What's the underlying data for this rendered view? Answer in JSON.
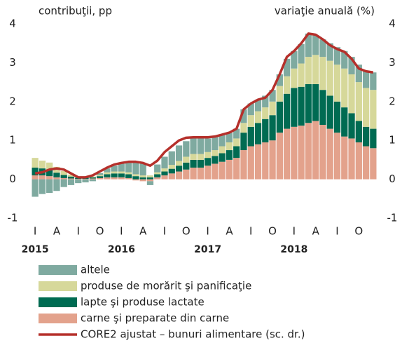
{
  "chart_data": {
    "type": "bar",
    "y_label": "contribuţii, pp",
    "y2_label": "variaţie anuală (%)",
    "categories": [
      "I",
      null,
      null,
      "A",
      null,
      null,
      "I",
      null,
      null,
      "O",
      null,
      null,
      "I",
      null,
      null,
      "A",
      null,
      null,
      "I",
      null,
      null,
      "O",
      null,
      null,
      "I",
      null,
      null,
      "A",
      null,
      null,
      "I",
      null,
      null,
      "O",
      null,
      null,
      "I",
      null,
      null,
      "A",
      null,
      null,
      "I",
      null,
      null,
      "O",
      null,
      null
    ],
    "year_labels": [
      "2015",
      "2016",
      "2017",
      "2018"
    ],
    "ylim": [
      -1,
      4
    ],
    "yticks": [
      -1,
      0,
      1,
      2,
      3,
      4
    ],
    "y2lim": [
      -1,
      4
    ],
    "y2ticks": [
      -1,
      0,
      1,
      2,
      3,
      4
    ],
    "stacked": true,
    "series": [
      {
        "name": "altele",
        "color": "#7faaa0",
        "values": [
          -0.45,
          -0.38,
          -0.35,
          -0.3,
          -0.2,
          -0.15,
          -0.1,
          -0.08,
          -0.05,
          0.05,
          0.1,
          0.15,
          0.2,
          0.25,
          0.3,
          0.3,
          -0.1,
          0.2,
          0.3,
          0.35,
          0.4,
          0.4,
          0.4,
          0.4,
          0.35,
          0.35,
          0.3,
          0.25,
          0.25,
          0.35,
          0.3,
          0.3,
          0.3,
          0.3,
          0.3,
          0.45,
          0.45,
          0.5,
          0.6,
          0.5,
          0.45,
          0.45,
          0.45,
          0.45,
          0.45,
          0.45,
          0.45,
          0.45
        ]
      },
      {
        "name": "produse de morărit şi panificaţie",
        "color": "#d6d89a",
        "values": [
          0.25,
          0.2,
          0.2,
          0.15,
          0.1,
          0.05,
          0.03,
          0.02,
          0.02,
          0.03,
          0.05,
          0.05,
          0.05,
          0.05,
          0.05,
          0.05,
          0.05,
          0.05,
          0.08,
          0.1,
          0.12,
          0.15,
          0.15,
          0.15,
          0.15,
          0.15,
          0.18,
          0.2,
          0.2,
          0.25,
          0.3,
          0.3,
          0.3,
          0.35,
          0.4,
          0.45,
          0.5,
          0.6,
          0.7,
          0.75,
          0.85,
          0.9,
          0.95,
          1.0,
          1.0,
          1.0,
          1.0,
          1.0
        ]
      },
      {
        "name": "lapte şi produse lactate",
        "color": "#006b52",
        "values": [
          0.2,
          0.18,
          0.15,
          0.12,
          0.08,
          0.05,
          0.03,
          0.03,
          0.03,
          0.05,
          0.08,
          0.1,
          0.1,
          0.1,
          0.08,
          0.05,
          0.05,
          0.08,
          0.1,
          0.12,
          0.15,
          0.18,
          0.2,
          0.2,
          0.2,
          0.2,
          0.22,
          0.25,
          0.3,
          0.45,
          0.5,
          0.55,
          0.6,
          0.65,
          0.8,
          0.9,
          1.0,
          1.0,
          1.0,
          0.95,
          0.9,
          0.85,
          0.8,
          0.75,
          0.65,
          0.55,
          0.5,
          0.5
        ]
      },
      {
        "name": "carne şi preparate din carne",
        "color": "#e3a28c",
        "values": [
          0.1,
          0.1,
          0.08,
          0.05,
          0.03,
          0.02,
          0.01,
          0.01,
          0.02,
          0.03,
          0.05,
          0.05,
          0.05,
          0.03,
          -0.03,
          -0.05,
          -0.05,
          0.05,
          0.1,
          0.15,
          0.2,
          0.25,
          0.3,
          0.3,
          0.35,
          0.4,
          0.45,
          0.5,
          0.55,
          0.75,
          0.85,
          0.9,
          0.95,
          1.0,
          1.2,
          1.3,
          1.35,
          1.38,
          1.45,
          1.5,
          1.4,
          1.3,
          1.2,
          1.1,
          1.05,
          0.95,
          0.85,
          0.8
        ]
      },
      {
        "name": "CORE2 ajustat – bunuri alimentare (sc. dr.)",
        "color": "#b5302b",
        "type": "line",
        "axis": "y2",
        "values": [
          0.15,
          0.18,
          0.25,
          0.28,
          0.25,
          0.15,
          0.05,
          0.05,
          0.1,
          0.2,
          0.3,
          0.38,
          0.42,
          0.45,
          0.45,
          0.42,
          0.35,
          0.48,
          0.7,
          0.85,
          1.0,
          1.07,
          1.08,
          1.08,
          1.08,
          1.1,
          1.15,
          1.2,
          1.3,
          1.8,
          1.95,
          2.05,
          2.1,
          2.3,
          2.7,
          3.15,
          3.3,
          3.5,
          3.75,
          3.72,
          3.6,
          3.45,
          3.35,
          3.28,
          3.1,
          2.85,
          2.78,
          2.75
        ]
      }
    ]
  }
}
